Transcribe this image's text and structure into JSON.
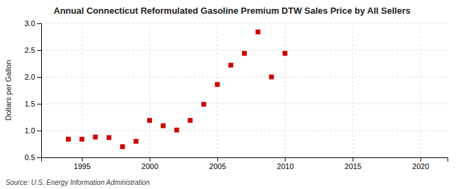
{
  "chart_data": {
    "type": "scatter",
    "title": "Annual Connecticut Reformulated Gasoline Premium DTW Sales Price by All Sellers",
    "ylabel": "Dollars per Gallon",
    "source": "Source: U.S. Energy Information Administration",
    "x": [
      1994,
      1995,
      1996,
      1997,
      1998,
      1999,
      2000,
      2001,
      2002,
      2003,
      2004,
      2005,
      2006,
      2007,
      2008,
      2009,
      2010
    ],
    "values": [
      0.84,
      0.84,
      0.88,
      0.87,
      0.7,
      0.8,
      1.19,
      1.09,
      1.01,
      1.19,
      1.49,
      1.86,
      2.22,
      2.44,
      2.84,
      2.0,
      2.44
    ],
    "color": "#cc0000",
    "marker": "square",
    "xlim": [
      1992,
      2022
    ],
    "ylim": [
      0.5,
      3.0
    ],
    "xticks": [
      1995,
      2000,
      2005,
      2010,
      2015,
      2020
    ],
    "yticks": [
      0.5,
      {
        "value": 1.0,
        "label": "1.0"
      },
      1.5,
      {
        "value": 2.0,
        "label": "2.0"
      },
      2.5,
      {
        "value": 3.0,
        "label": "3.0"
      }
    ],
    "grid": true
  }
}
